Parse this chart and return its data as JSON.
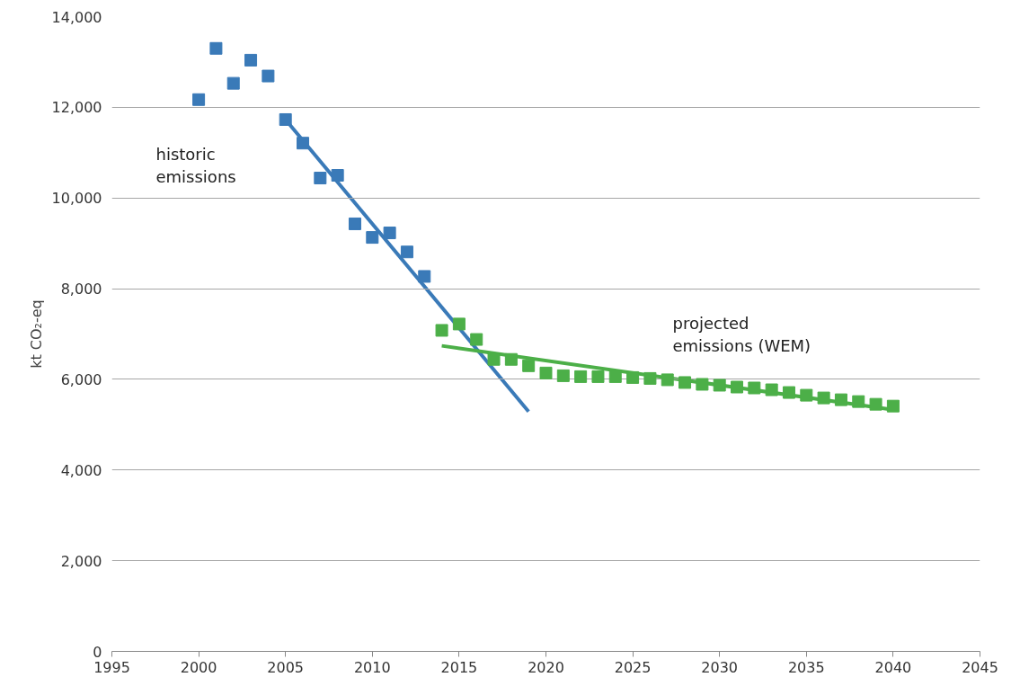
{
  "chart_data": {
    "type": "scatter",
    "ylabel": "kt CO₂-eq",
    "xlim": [
      1995,
      2045
    ],
    "xticks": [
      1995,
      2000,
      2005,
      2010,
      2015,
      2020,
      2025,
      2030,
      2035,
      2040,
      2045
    ],
    "ylim": [
      0,
      14000
    ],
    "yticks": [
      0,
      {
        "value": 2000,
        "label": "2,000"
      },
      {
        "value": 4000,
        "label": "4,000"
      },
      {
        "value": 6000,
        "label": "6,000"
      },
      {
        "value": 8000,
        "label": "8,000"
      },
      {
        "value": 10000,
        "label": "10,000"
      },
      {
        "value": 12000,
        "label": "12,000"
      },
      {
        "value": 14000,
        "label": "14,000"
      }
    ],
    "grid": "y",
    "marker": "square",
    "series": [
      {
        "color": "#3a7ab8",
        "x": [
          2000,
          2001,
          2002,
          2003,
          2004,
          2005,
          2006,
          2007,
          2008,
          2009,
          2010,
          2011,
          2012,
          2013
        ],
        "values": [
          12170,
          13300,
          12530,
          13040,
          12690,
          11730,
          11210,
          10440,
          10500,
          9430,
          9130,
          9230,
          8810,
          8270
        ]
      },
      {
        "color": "#4caf48",
        "x": [
          2014,
          2015,
          2016,
          2017,
          2018,
          2019,
          2020,
          2021,
          2022,
          2023,
          2024,
          2025,
          2026,
          2027,
          2028,
          2029,
          2030,
          2031,
          2032,
          2033,
          2034,
          2035,
          2036,
          2037,
          2038,
          2039,
          2040
        ],
        "values": [
          7080,
          7220,
          6880,
          6440,
          6440,
          6300,
          6140,
          6080,
          6060,
          6060,
          6060,
          6040,
          6020,
          5990,
          5930,
          5890,
          5870,
          5830,
          5810,
          5770,
          5710,
          5650,
          5590,
          5550,
          5510,
          5450,
          5410
        ]
      },
      {
        "type": "line",
        "marker": "none",
        "color": "#3a7ab8",
        "x": [
          2005,
          2019
        ],
        "values": [
          11730,
          5290
        ]
      },
      {
        "type": "line",
        "marker": "none",
        "color": "#4caf48",
        "x": [
          2014,
          2040
        ],
        "values": [
          6740,
          5330
        ]
      }
    ],
    "annotations": [
      "historic\nemissions",
      "projected\nemissions (WEM)"
    ]
  }
}
